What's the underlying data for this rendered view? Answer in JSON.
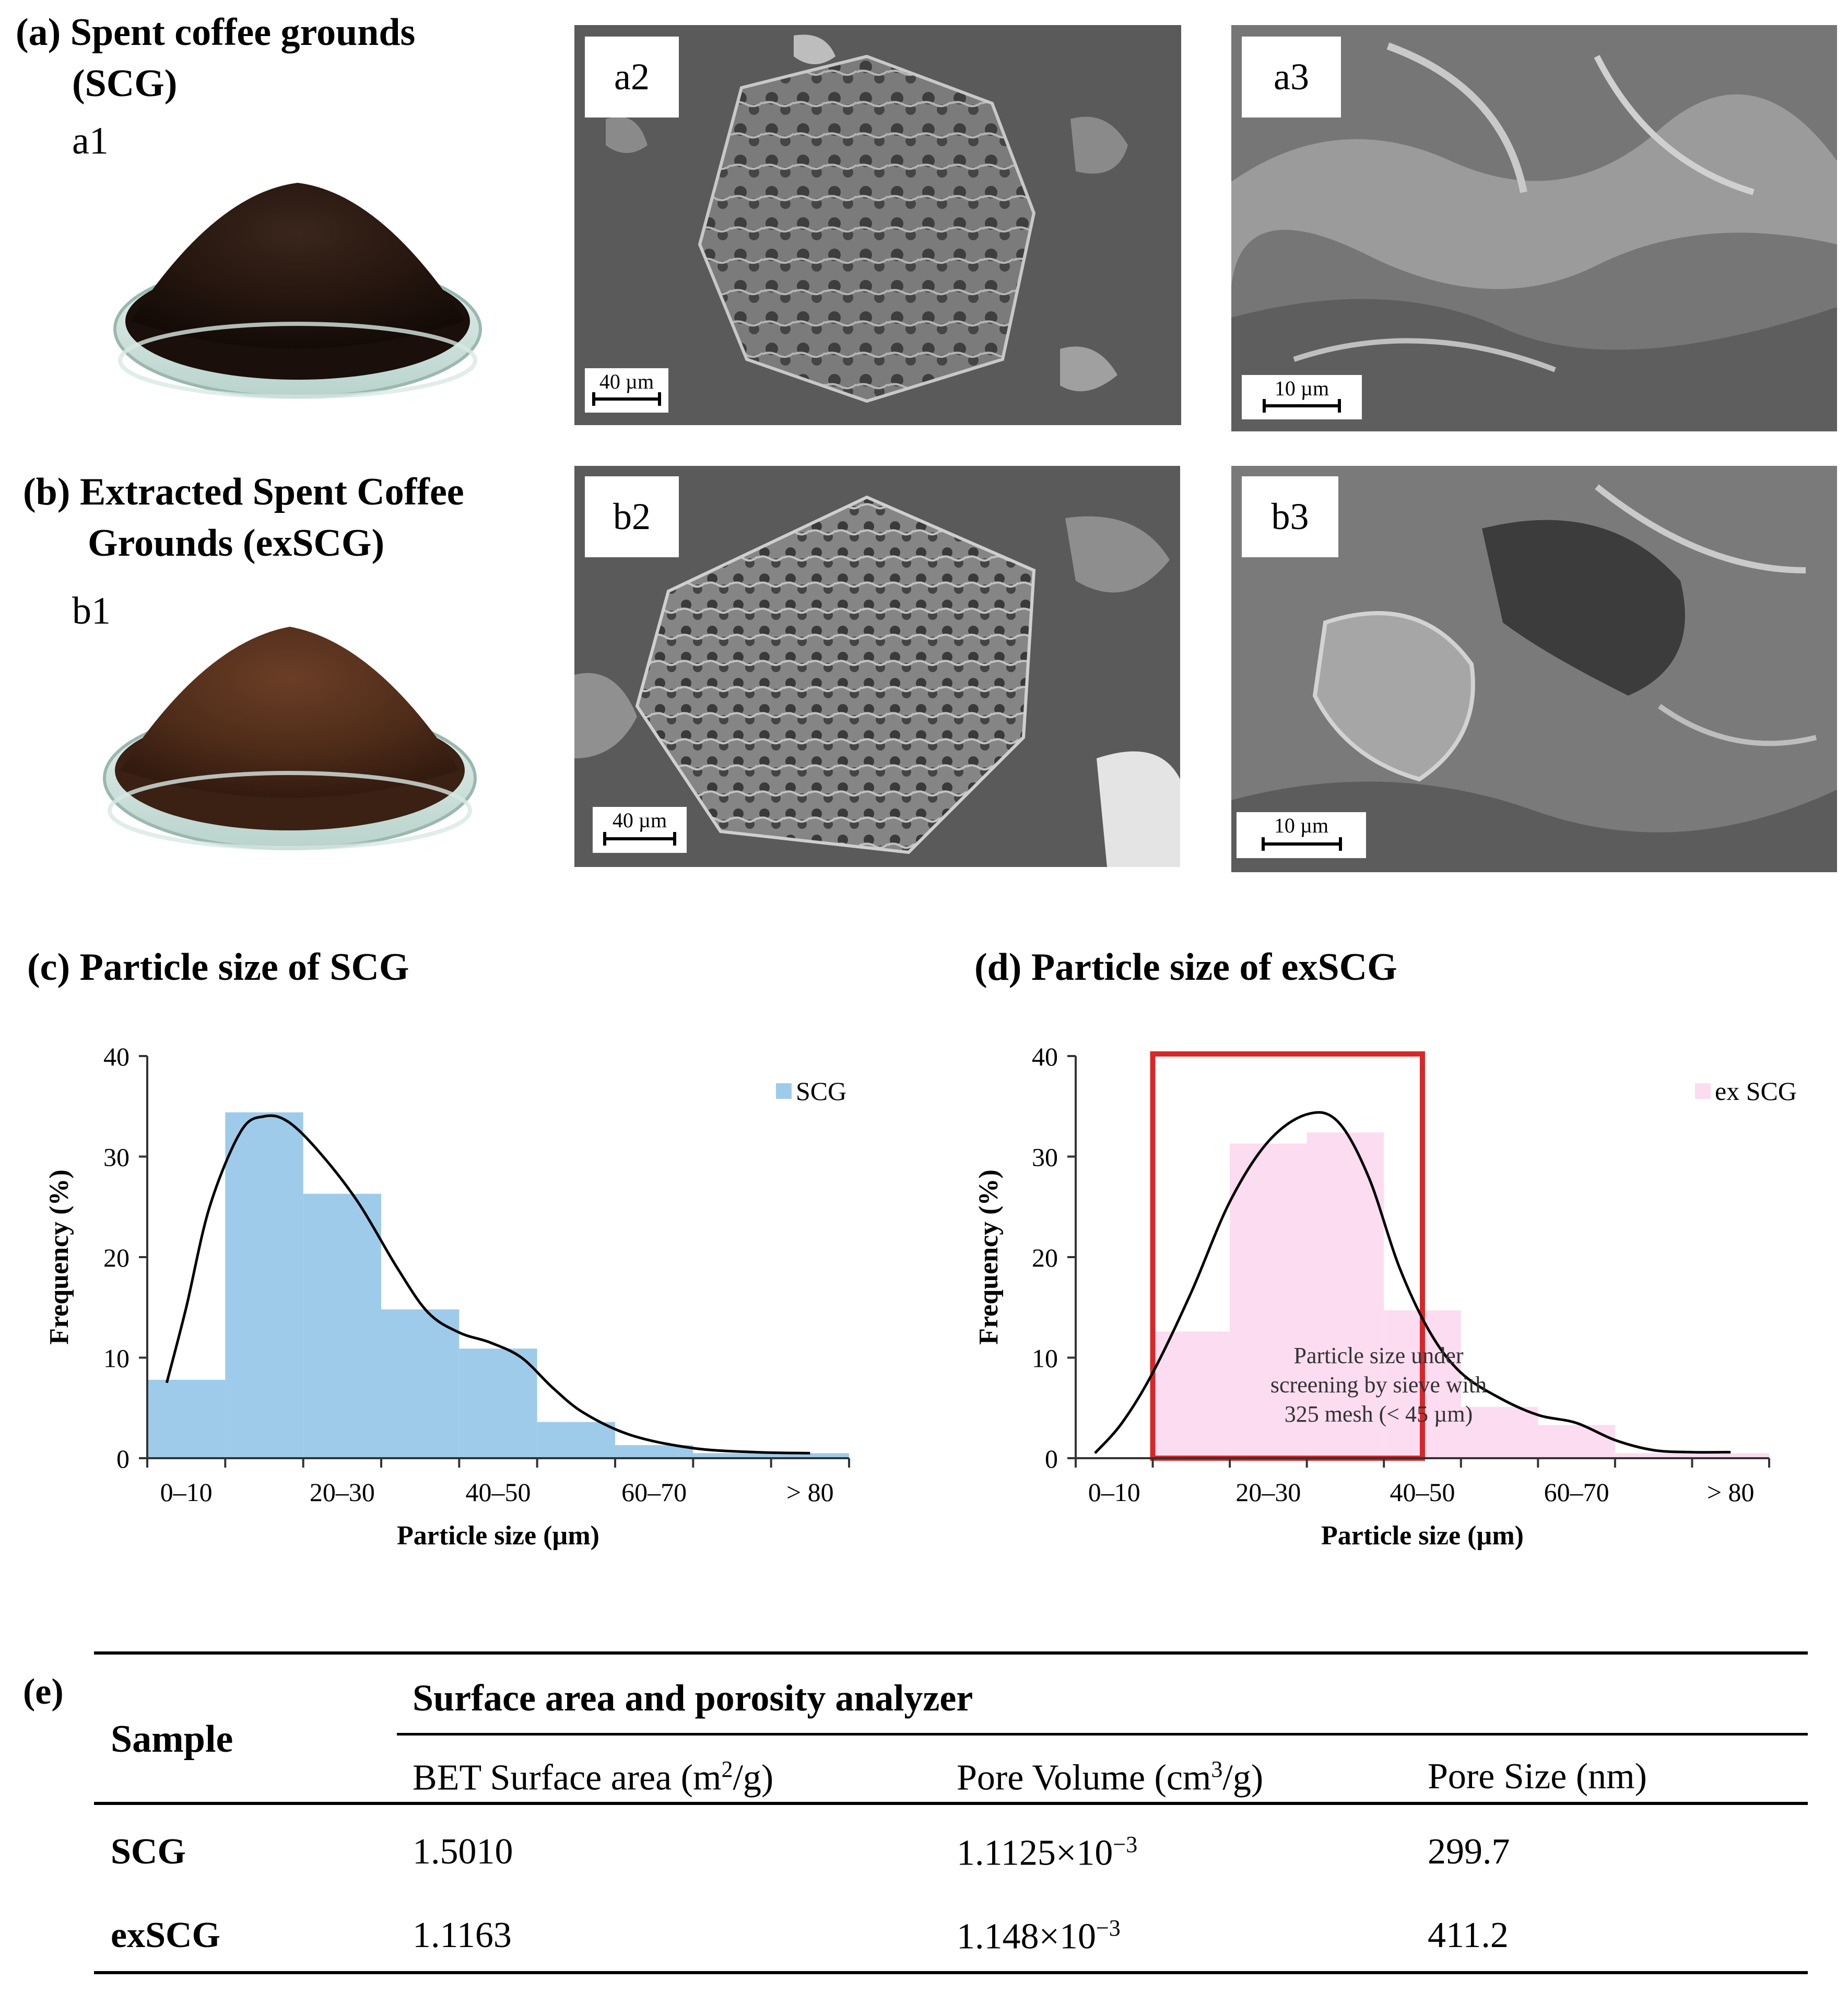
{
  "panels": {
    "a_title_1": "(a) Spent coffee grounds",
    "a_title_2": "(SCG)",
    "a1": "a1",
    "a2": "a2",
    "a3": "a3",
    "b_title_1": "(b) Extracted Spent Coffee",
    "b_title_2": "Grounds  (exSCG)",
    "b1": "b1",
    "b2": "b2",
    "b3": "b3",
    "scale_40": "40 µm",
    "scale_10": "10 µm",
    "c_title": "(c) Particle size  of SCG",
    "d_title": "(d) Particle size  of exSCG",
    "e_label": "(e)"
  },
  "chart_data": [
    {
      "type": "bar",
      "title": "(c) Particle size  of SCG",
      "xlabel": "Particle size (µm)",
      "ylabel": "Frequency (%)",
      "ylim": [
        0,
        40
      ],
      "yticks": [
        "0",
        "10",
        "20",
        "30",
        "40"
      ],
      "xticks": [
        "0–10",
        "20–30",
        "40–50",
        "60–70",
        "> 80"
      ],
      "legend": "top-right",
      "color": "#9ecbea",
      "series": [
        {
          "name": "SCG",
          "bins": [
            "0–10",
            "10–20",
            "20–30",
            "30–40",
            "40–50",
            "50–60",
            "60–70",
            "70–80",
            "80–90"
          ],
          "values": [
            7.8,
            34.4,
            26.3,
            14.8,
            10.9,
            3.6,
            1.3,
            0.5,
            0.5
          ],
          "fit_curve": [
            [
              2.5,
              7.5
            ],
            [
              5,
              15
            ],
            [
              8,
              25
            ],
            [
              12,
              32.5
            ],
            [
              15,
              34
            ],
            [
              18,
              33.5
            ],
            [
              22,
              30.5
            ],
            [
              27,
              25.5
            ],
            [
              32,
              19
            ],
            [
              36,
              14.5
            ],
            [
              40,
              12.5
            ],
            [
              44,
              11.5
            ],
            [
              48,
              10
            ],
            [
              52,
              7
            ],
            [
              56,
              4.5
            ],
            [
              62,
              2.3
            ],
            [
              70,
              1
            ],
            [
              78,
              0.6
            ],
            [
              85,
              0.5
            ]
          ]
        }
      ]
    },
    {
      "type": "bar",
      "title": "(d) Particle size  of exSCG",
      "xlabel": "Particle size (µm)",
      "ylabel": "Frequency (%)",
      "ylim": [
        0,
        40
      ],
      "yticks": [
        "0",
        "10",
        "20",
        "30",
        "40"
      ],
      "xticks": [
        "0–10",
        "20–30",
        "40–50",
        "60–70",
        "> 80"
      ],
      "legend": "top-right",
      "color": "#fcdcf1",
      "annotation": [
        "Particle size under",
        "screening by sieve with",
        "325 mesh (< 45 µm)"
      ],
      "highlight_range": [
        10,
        45
      ],
      "highlight_color": "#d62828",
      "series": [
        {
          "name": "ex SCG",
          "bins": [
            "0–10",
            "10–20",
            "20–30",
            "30–40",
            "40–50",
            "50–60",
            "60–70",
            "70–80",
            "80–90"
          ],
          "values": [
            0,
            12.6,
            31.3,
            32.4,
            14.7,
            5.1,
            3.3,
            0.5,
            0.5
          ],
          "fit_curve": [
            [
              2.5,
              0.5
            ],
            [
              6,
              3.5
            ],
            [
              10,
              8.5
            ],
            [
              15,
              16.5
            ],
            [
              20,
              25.5
            ],
            [
              25,
              31.5
            ],
            [
              30,
              34.2
            ],
            [
              34,
              33.5
            ],
            [
              38,
              28
            ],
            [
              42,
              19
            ],
            [
              46,
              12.5
            ],
            [
              50,
              8.5
            ],
            [
              55,
              6
            ],
            [
              60,
              4.3
            ],
            [
              65,
              3.5
            ],
            [
              70,
              1.8
            ],
            [
              75,
              0.8
            ],
            [
              80,
              0.6
            ],
            [
              85,
              0.6
            ]
          ]
        }
      ]
    }
  ],
  "table": {
    "sample_header": "Sample",
    "group_header": "Surface area and porosity analyzer",
    "col1": "BET Surface area (m",
    "col1_sup": "2",
    "col1_end": "/g)",
    "col2": "Pore Volume (cm",
    "col2_sup": "3",
    "col2_end": "/g)",
    "col3": "Pore Size (nm)",
    "rows": [
      {
        "sample": "SCG",
        "bet": "1.5010",
        "vol": "1.1125×10",
        "vol_exp": "−3",
        "size": "299.7"
      },
      {
        "sample": "exSCG",
        "bet": "1.1163",
        "vol": "1.148×10",
        "vol_exp": "−3",
        "size": "411.2"
      }
    ]
  }
}
